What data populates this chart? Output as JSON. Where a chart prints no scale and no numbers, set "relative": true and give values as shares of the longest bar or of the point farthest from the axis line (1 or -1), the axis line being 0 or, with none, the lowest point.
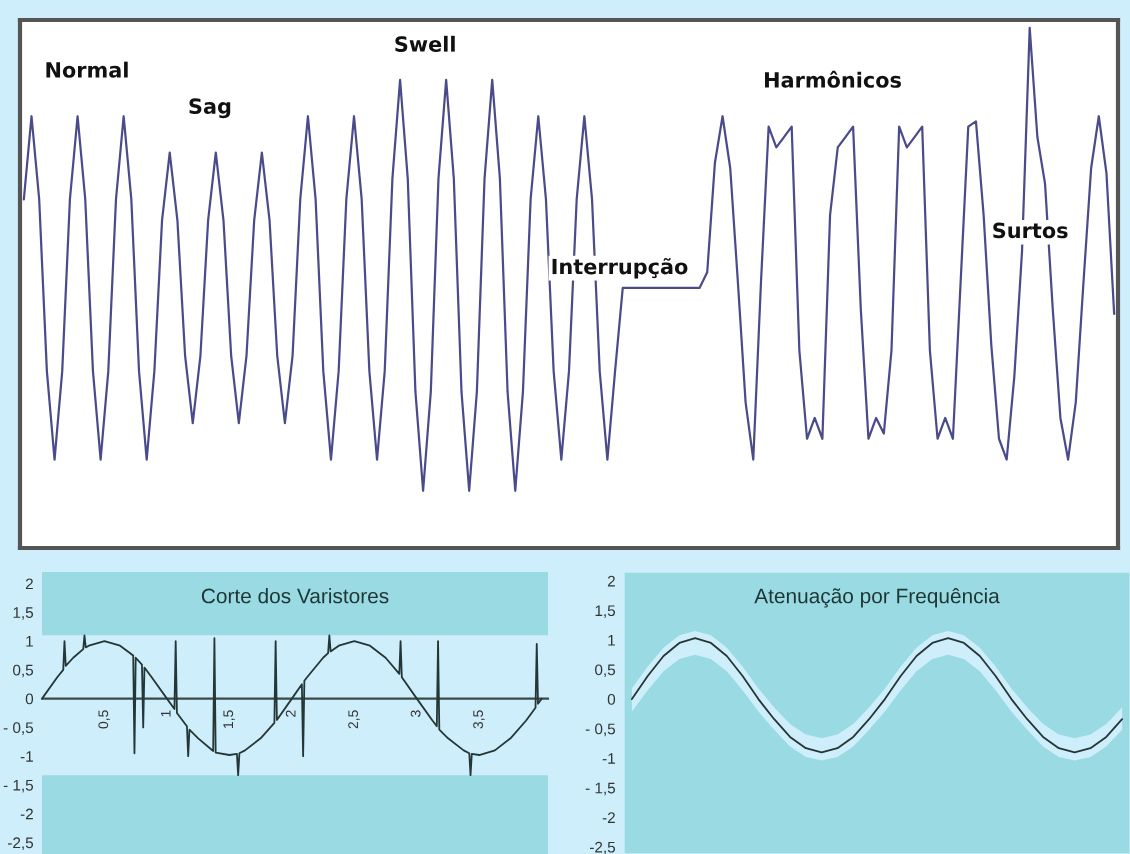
{
  "chart_data": [
    {
      "type": "line",
      "relative": true,
      "tick_labels": false,
      "annotations": [
        "Normal",
        "Sag",
        "Swell",
        "Interrupção",
        "Harmônicos",
        "Surtos"
      ],
      "categories": [
        null,
        null,
        null,
        null,
        null,
        null,
        null,
        null,
        null,
        null,
        null,
        null,
        null,
        null,
        null,
        null,
        null,
        null,
        null,
        null,
        null,
        null,
        null,
        null,
        null,
        null,
        null,
        null,
        null,
        null,
        null,
        null,
        null,
        null,
        null,
        null,
        null,
        null,
        null,
        null,
        null,
        null,
        null,
        null,
        null,
        null,
        null,
        null,
        null,
        null,
        null,
        null,
        null,
        null,
        null,
        null,
        null,
        null,
        null,
        null,
        null,
        null,
        null,
        null,
        null,
        null,
        null,
        null,
        null,
        null,
        null,
        null,
        null,
        null,
        null,
        null,
        null,
        null,
        null,
        null,
        null,
        null,
        null,
        null,
        null,
        null,
        null,
        null,
        null,
        null,
        null,
        null,
        null,
        null,
        null,
        null,
        null,
        null,
        null,
        null,
        null,
        null,
        null,
        null,
        null,
        null,
        null,
        null,
        null,
        null,
        null,
        null,
        null,
        null,
        null,
        null,
        null,
        null,
        null,
        null,
        null,
        null,
        null,
        null,
        null,
        null,
        null,
        null,
        null,
        null,
        null,
        null,
        null,
        null,
        null,
        null,
        null,
        null,
        null,
        null,
        null,
        null,
        null
      ],
      "series": [
        {
          "color": "#4b4b8c",
          "values": [
            0.67,
            0.83,
            0.67,
            0.34,
            0.17,
            0.34,
            0.67,
            0.83,
            0.67,
            0.34,
            0.17,
            0.34,
            0.67,
            0.83,
            0.67,
            0.34,
            0.17,
            0.34,
            0.63,
            0.76,
            0.63,
            0.37,
            0.24,
            0.37,
            0.63,
            0.76,
            0.63,
            0.37,
            0.24,
            0.37,
            0.63,
            0.76,
            0.63,
            0.37,
            0.24,
            0.37,
            0.67,
            0.83,
            0.67,
            0.34,
            0.17,
            0.34,
            0.67,
            0.83,
            0.67,
            0.34,
            0.17,
            0.34,
            0.71,
            0.9,
            0.71,
            0.3,
            0.11,
            0.3,
            0.71,
            0.9,
            0.71,
            0.3,
            0.11,
            0.3,
            0.71,
            0.9,
            0.71,
            0.3,
            0.11,
            0.3,
            0.67,
            0.83,
            0.67,
            0.34,
            0.17,
            0.34,
            0.67,
            0.83,
            0.67,
            0.34,
            0.17,
            0.34,
            0.5,
            0.5,
            0.5,
            0.5,
            0.5,
            0.5,
            0.5,
            0.5,
            0.5,
            0.5,
            0.5,
            0.53,
            0.74,
            0.83,
            0.73,
            0.51,
            0.28,
            0.17,
            0.51,
            0.81,
            0.77,
            0.79,
            0.81,
            0.38,
            0.21,
            0.25,
            0.21,
            0.64,
            0.77,
            0.79,
            0.81,
            0.46,
            0.21,
            0.25,
            0.22,
            0.38,
            0.81,
            0.77,
            0.79,
            0.81,
            0.38,
            0.21,
            0.25,
            0.21,
            0.51,
            0.81,
            0.82,
            0.64,
            0.39,
            0.21,
            0.17,
            0.33,
            0.57,
            1.0,
            0.79,
            0.7,
            0.46,
            0.25,
            0.17,
            0.28,
            0.51,
            0.73,
            0.83,
            0.72,
            0.45
          ]
        }
      ]
    },
    {
      "type": "line",
      "title": "Corte dos Varistores",
      "xlim": [
        0,
        4.05
      ],
      "xticks": [
        {
          "value": 0.5,
          "label": "0,5"
        },
        1,
        {
          "value": 1.5,
          "label": "1,5"
        },
        2,
        {
          "value": 2.5,
          "label": "2,5"
        },
        3,
        {
          "value": 3.5,
          "label": "3,5"
        }
      ],
      "ylim": [
        -2.7,
        2.2
      ],
      "yticks": [
        {
          "value": 2,
          "label": "2"
        },
        {
          "value": 1.5,
          "label": "1,5"
        },
        {
          "value": 1,
          "label": "1"
        },
        {
          "value": 0.5,
          "label": "0,5"
        },
        {
          "value": 0,
          "label": "0"
        },
        {
          "value": -0.5,
          "label": "- 0,5"
        },
        {
          "value": -1,
          "label": "-1"
        },
        {
          "value": -1.5,
          "label": "- 1,5"
        },
        {
          "value": -2,
          "label": "-2"
        },
        {
          "value": -2.5,
          "label": "-2,5"
        }
      ],
      "bands": [
        {
          "axis": "y",
          "from": -1.33,
          "to": 1.1,
          "color": "#cdeefa"
        }
      ],
      "series": [
        {
          "color": "#263636",
          "x": [
            0,
            0.125,
            0.17,
            0.18,
            0.19,
            0.25,
            0.33,
            0.34,
            0.35,
            0.375,
            0.5,
            0.625,
            0.73,
            0.74,
            0.75,
            0.8,
            0.81,
            0.82,
            0.875,
            1,
            1.06,
            1.07,
            1.08,
            1.125,
            1.16,
            1.17,
            1.18,
            1.25,
            1.37,
            1.38,
            1.39,
            1.5,
            1.56,
            1.57,
            1.58,
            1.625,
            1.75,
            1.86,
            1.87,
            1.88,
            2,
            2.08,
            2.09,
            2.1,
            2.125,
            2.25,
            2.29,
            2.3,
            2.31,
            2.375,
            2.5,
            2.625,
            2.75,
            2.86,
            2.87,
            2.88,
            3,
            3.125,
            3.16,
            3.17,
            3.18,
            3.25,
            3.375,
            3.42,
            3.43,
            3.44,
            3.5,
            3.625,
            3.75,
            3.875,
            3.95,
            3.96,
            3.97,
            4
          ],
          "values": [
            0,
            0.38,
            0.5,
            1.0,
            0.57,
            0.71,
            0.86,
            1.1,
            0.89,
            0.92,
            1,
            0.92,
            0.75,
            -0.95,
            0.71,
            0.59,
            -0.5,
            0.54,
            0.38,
            0,
            -0.18,
            1.0,
            -0.25,
            -0.38,
            -0.48,
            -1.0,
            -0.54,
            -0.69,
            -0.91,
            1.05,
            -0.94,
            -0.98,
            -0.96,
            -1.33,
            -0.95,
            -0.9,
            -0.69,
            -0.42,
            1.0,
            -0.37,
            0,
            0.25,
            -1.0,
            0.31,
            0.38,
            0.71,
            0.79,
            1.1,
            0.82,
            0.92,
            1,
            0.92,
            0.71,
            0.43,
            1.0,
            0.37,
            0,
            -0.38,
            -0.48,
            1.0,
            -0.54,
            -0.69,
            -0.9,
            -0.95,
            -1.33,
            -0.96,
            -0.98,
            -0.9,
            -0.69,
            -0.38,
            -0.16,
            0.95,
            -0.09,
            0
          ]
        }
      ]
    },
    {
      "type": "line",
      "title": "Atenuação por Frequência",
      "tick_labels": "y",
      "categories": [
        null,
        null,
        null,
        null,
        null,
        null,
        null,
        null,
        null,
        null,
        null,
        null,
        null,
        null,
        null,
        null,
        null,
        null,
        null,
        null,
        null,
        null,
        null,
        null,
        null,
        null,
        null,
        null,
        null,
        null,
        null,
        null
      ],
      "ylim": [
        -2.62,
        2.15
      ],
      "yticks": [
        {
          "value": 2,
          "label": "2"
        },
        {
          "value": 1.5,
          "label": "1,5"
        },
        {
          "value": 1,
          "label": "1"
        },
        {
          "value": 0.5,
          "label": "0,5"
        },
        {
          "value": 0,
          "label": "0"
        },
        {
          "value": -0.5,
          "label": "- 0,5"
        },
        {
          "value": -1,
          "label": "-1"
        },
        {
          "value": -1.5,
          "label": "- 1,5"
        },
        {
          "value": -2,
          "label": "-2"
        },
        {
          "value": -2.5,
          "label": "-2,5"
        }
      ],
      "series": [
        {
          "color": "#263636",
          "values": [
            0,
            0.39,
            0.73,
            0.95,
            1.03,
            0.95,
            0.73,
            0.39,
            0,
            -0.34,
            -0.64,
            -0.83,
            -0.9,
            -0.83,
            -0.64,
            -0.34,
            0,
            0.39,
            0.73,
            0.95,
            1.03,
            0.95,
            0.73,
            0.39,
            0,
            -0.34,
            -0.64,
            -0.83,
            -0.9,
            -0.83,
            -0.64,
            -0.34
          ],
          "lower": [
            -0.21,
            0.15,
            0.47,
            0.68,
            0.75,
            0.68,
            0.47,
            0.15,
            -0.21,
            -0.52,
            -0.8,
            -0.98,
            -1.04,
            -0.98,
            -0.8,
            -0.52,
            -0.21,
            0.15,
            0.47,
            0.68,
            0.75,
            0.68,
            0.47,
            0.15,
            -0.21,
            -0.52,
            -0.8,
            -0.98,
            -1.04,
            -0.98,
            -0.8,
            -0.52
          ],
          "upper": [
            0.18,
            0.55,
            0.87,
            1.08,
            1.15,
            1.08,
            0.87,
            0.55,
            0.18,
            -0.14,
            -0.42,
            -0.6,
            -0.66,
            -0.6,
            -0.42,
            -0.14,
            0.18,
            0.55,
            0.87,
            1.08,
            1.15,
            1.08,
            0.87,
            0.55,
            0.18,
            -0.14,
            -0.42,
            -0.6,
            -0.66,
            -0.6,
            -0.42,
            -0.14
          ]
        }
      ]
    }
  ]
}
